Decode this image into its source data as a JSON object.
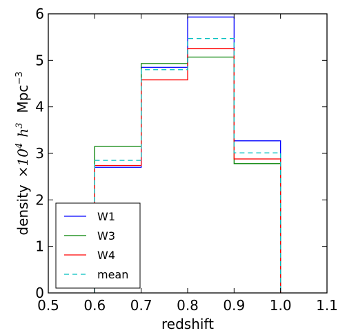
{
  "chart_data": {
    "type": "step",
    "xlabel": "redshift",
    "ylabel": {
      "word": "density",
      "times": "×10",
      "exp1": "4",
      "h": "h",
      "exp2": "3",
      "unit": "Mpc",
      "unit_exp": "−3"
    },
    "xlim": [
      0.5,
      1.1
    ],
    "ylim": [
      0,
      6
    ],
    "x_ticks": [
      "0.5",
      "0.6",
      "0.7",
      "0.8",
      "0.9",
      "1.0",
      "1.1"
    ],
    "y_ticks": [
      "0",
      "1",
      "2",
      "3",
      "4",
      "5",
      "6"
    ],
    "bin_edges": [
      0.6,
      0.7,
      0.8,
      0.9,
      1.0
    ],
    "grid": false,
    "legend_position": "lower-left",
    "series": [
      {
        "name": "W1",
        "values": [
          2.7,
          4.85,
          5.93,
          3.27
        ],
        "color": "#0000ff",
        "style": "solid"
      },
      {
        "name": "W3",
        "values": [
          3.15,
          4.93,
          5.07,
          2.78
        ],
        "color": "#008000",
        "style": "solid"
      },
      {
        "name": "W4",
        "values": [
          2.74,
          4.58,
          5.25,
          2.88
        ],
        "color": "#ff0000",
        "style": "solid"
      },
      {
        "name": "mean",
        "values": [
          2.85,
          4.8,
          5.47,
          3.01
        ],
        "color": "#00bfbf",
        "style": "dashed"
      }
    ]
  }
}
